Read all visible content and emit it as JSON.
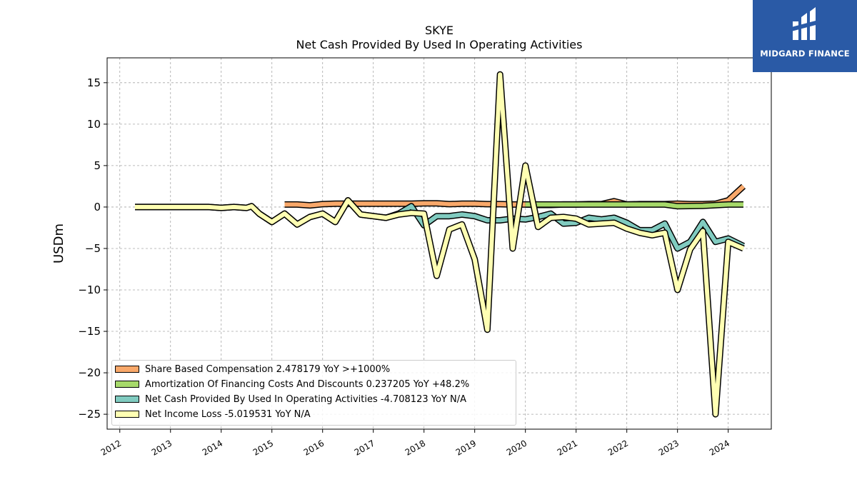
{
  "header": {
    "title": "SKYE",
    "subtitle": "Net Cash Provided By Used In Operating Activities"
  },
  "logo": {
    "text": "MIDGARD FINANCE",
    "bg_color": "#2a5aa6"
  },
  "chart_data": {
    "type": "line",
    "ylabel": "USDm",
    "ylim": [
      -26.8,
      18.0
    ],
    "xlim": [
      2011.75,
      2024.85
    ],
    "yticks": [
      15,
      10,
      5,
      0,
      -5,
      -10,
      -15,
      -20,
      -25
    ],
    "ytick_labels": [
      "15",
      "10",
      "5",
      "0",
      "−5",
      "−10",
      "−15",
      "−20",
      "−25"
    ],
    "xticks": [
      2012,
      2013,
      2014,
      2015,
      2016,
      2017,
      2018,
      2019,
      2020,
      2021,
      2022,
      2023,
      2024
    ],
    "xtick_labels": [
      "2012",
      "2013",
      "2014",
      "2015",
      "2016",
      "2017",
      "2018",
      "2019",
      "2020",
      "2021",
      "2022",
      "2023",
      "2024"
    ],
    "grid": true,
    "legend_position": "lower-left",
    "series": [
      {
        "name": "Share Based Compensation",
        "legend": "Share Based Compensation  2.478179 YoY >+1000%",
        "color": "#f9a86a",
        "points": [
          [
            2015.25,
            0.3
          ],
          [
            2015.5,
            0.3
          ],
          [
            2015.75,
            0.2
          ],
          [
            2016.0,
            0.35
          ],
          [
            2016.25,
            0.4
          ],
          [
            2016.5,
            0.4
          ],
          [
            2016.75,
            0.4
          ],
          [
            2017.0,
            0.4
          ],
          [
            2017.25,
            0.4
          ],
          [
            2017.5,
            0.4
          ],
          [
            2017.75,
            0.4
          ],
          [
            2018.0,
            0.45
          ],
          [
            2018.25,
            0.45
          ],
          [
            2018.5,
            0.35
          ],
          [
            2018.75,
            0.4
          ],
          [
            2019.0,
            0.4
          ],
          [
            2019.25,
            0.35
          ],
          [
            2019.5,
            0.35
          ],
          [
            2019.75,
            0.3
          ],
          [
            2020.0,
            0.3
          ],
          [
            2020.25,
            0.25
          ],
          [
            2020.5,
            0.25
          ],
          [
            2020.75,
            0.3
          ],
          [
            2021.0,
            0.3
          ],
          [
            2021.25,
            0.35
          ],
          [
            2021.5,
            0.35
          ],
          [
            2021.75,
            0.7
          ],
          [
            2022.0,
            0.3
          ],
          [
            2022.25,
            0.35
          ],
          [
            2022.5,
            0.35
          ],
          [
            2022.75,
            0.35
          ],
          [
            2023.0,
            0.4
          ],
          [
            2023.25,
            0.35
          ],
          [
            2023.5,
            0.35
          ],
          [
            2023.75,
            0.4
          ],
          [
            2024.0,
            0.8
          ],
          [
            2024.3,
            2.5
          ]
        ]
      },
      {
        "name": "Amortization Of Financing Costs And Discounts",
        "legend": "Amortization Of Financing Costs And Discounts  0.237205 YoY +48.2%",
        "color": "#a6d96a",
        "points": [
          [
            2020.0,
            0.3
          ],
          [
            2020.5,
            0.3
          ],
          [
            2021.0,
            0.3
          ],
          [
            2021.5,
            0.3
          ],
          [
            2022.0,
            0.3
          ],
          [
            2022.5,
            0.3
          ],
          [
            2022.75,
            0.3
          ],
          [
            2023.0,
            0.1
          ],
          [
            2023.5,
            0.15
          ],
          [
            2024.0,
            0.3
          ],
          [
            2024.3,
            0.3
          ]
        ]
      },
      {
        "name": "Net Cash Provided By Used In Operating Activities",
        "legend": "Net Cash Provided By Used In Operating Activities  -4.708123 YoY N/A",
        "color": "#80cbc0",
        "points": [
          [
            2012.3,
            0.0
          ],
          [
            2013.0,
            0.0
          ],
          [
            2013.75,
            0.0
          ],
          [
            2014.0,
            -0.1
          ],
          [
            2014.25,
            0.0
          ],
          [
            2014.5,
            -0.1
          ],
          [
            2014.6,
            0.1
          ],
          [
            2014.75,
            -0.8
          ],
          [
            2015.0,
            -1.8
          ],
          [
            2015.25,
            -0.8
          ],
          [
            2015.5,
            -2.1
          ],
          [
            2015.75,
            -1.2
          ],
          [
            2016.0,
            -0.8
          ],
          [
            2016.25,
            -1.8
          ],
          [
            2016.5,
            0.8
          ],
          [
            2016.75,
            -0.9
          ],
          [
            2017.0,
            -1.1
          ],
          [
            2017.25,
            -1.3
          ],
          [
            2017.5,
            -0.8
          ],
          [
            2017.75,
            0.1
          ],
          [
            2018.0,
            -2.2
          ],
          [
            2018.25,
            -1.1
          ],
          [
            2018.5,
            -1.1
          ],
          [
            2018.75,
            -0.9
          ],
          [
            2019.0,
            -1.1
          ],
          [
            2019.25,
            -1.6
          ],
          [
            2019.5,
            -1.6
          ],
          [
            2019.75,
            -1.4
          ],
          [
            2020.0,
            -1.5
          ],
          [
            2020.25,
            -1.2
          ],
          [
            2020.5,
            -0.8
          ],
          [
            2020.75,
            -2.0
          ],
          [
            2021.0,
            -1.9
          ],
          [
            2021.25,
            -1.3
          ],
          [
            2021.5,
            -1.5
          ],
          [
            2021.75,
            -1.3
          ],
          [
            2022.0,
            -1.9
          ],
          [
            2022.25,
            -2.8
          ],
          [
            2022.5,
            -2.8
          ],
          [
            2022.75,
            -2.0
          ],
          [
            2023.0,
            -5.0
          ],
          [
            2023.25,
            -4.2
          ],
          [
            2023.5,
            -1.8
          ],
          [
            2023.75,
            -4.2
          ],
          [
            2024.0,
            -3.8
          ],
          [
            2024.3,
            -4.7
          ]
        ]
      },
      {
        "name": "Net Income Loss",
        "legend": "Net Income Loss  -5.019531 YoY N/A",
        "color": "#ffffb3",
        "points": [
          [
            2012.3,
            0.0
          ],
          [
            2013.0,
            0.0
          ],
          [
            2013.75,
            0.0
          ],
          [
            2014.0,
            -0.1
          ],
          [
            2014.25,
            0.0
          ],
          [
            2014.5,
            -0.1
          ],
          [
            2014.6,
            0.1
          ],
          [
            2014.75,
            -0.8
          ],
          [
            2015.0,
            -1.8
          ],
          [
            2015.25,
            -0.8
          ],
          [
            2015.5,
            -2.1
          ],
          [
            2015.75,
            -1.2
          ],
          [
            2016.0,
            -0.8
          ],
          [
            2016.25,
            -1.8
          ],
          [
            2016.5,
            0.8
          ],
          [
            2016.75,
            -0.9
          ],
          [
            2017.0,
            -1.1
          ],
          [
            2017.25,
            -1.3
          ],
          [
            2017.5,
            -0.9
          ],
          [
            2017.75,
            -0.7
          ],
          [
            2018.0,
            -0.8
          ],
          [
            2018.25,
            -8.3
          ],
          [
            2018.5,
            -2.7
          ],
          [
            2018.75,
            -2.1
          ],
          [
            2019.0,
            -6.3
          ],
          [
            2019.25,
            -14.8
          ],
          [
            2019.5,
            16.0
          ],
          [
            2019.75,
            -5.0
          ],
          [
            2020.0,
            5.0
          ],
          [
            2020.25,
            -2.4
          ],
          [
            2020.5,
            -1.3
          ],
          [
            2020.75,
            -1.2
          ],
          [
            2021.0,
            -1.4
          ],
          [
            2021.25,
            -2.1
          ],
          [
            2021.5,
            -2.0
          ],
          [
            2021.75,
            -1.9
          ],
          [
            2022.0,
            -2.6
          ],
          [
            2022.25,
            -3.1
          ],
          [
            2022.5,
            -3.4
          ],
          [
            2022.75,
            -3.1
          ],
          [
            2023.0,
            -10.0
          ],
          [
            2023.25,
            -5.1
          ],
          [
            2023.5,
            -2.9
          ],
          [
            2023.75,
            -25.0
          ],
          [
            2024.0,
            -4.2
          ],
          [
            2024.3,
            -5.0
          ]
        ]
      }
    ]
  }
}
